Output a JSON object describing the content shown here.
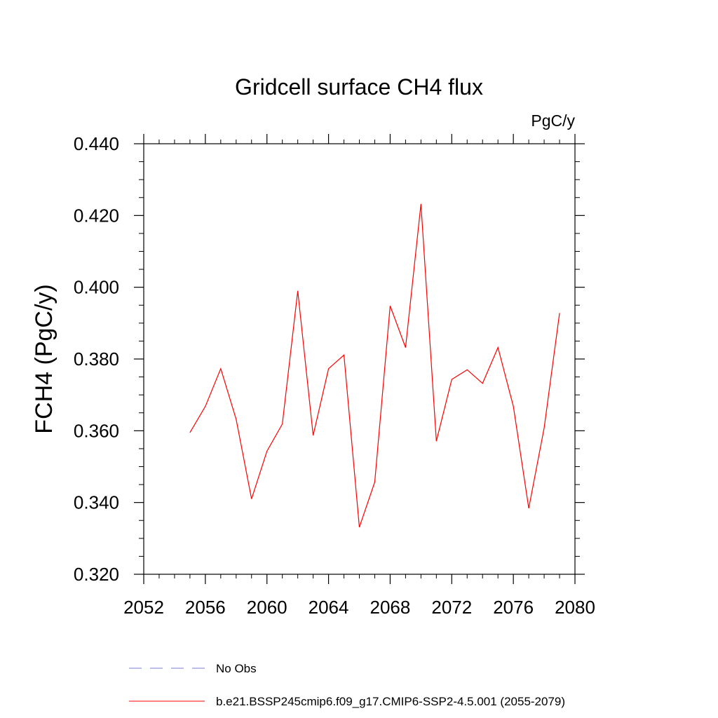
{
  "chart_data": {
    "type": "line",
    "title": "Gridcell surface CH4 flux",
    "units": "PgC/y",
    "ylabel": "FCH4  (PgC/y)",
    "xlabel": "",
    "xlim": [
      2052,
      2080
    ],
    "ylim": [
      0.32,
      0.44
    ],
    "x_ticks": [
      2052,
      2056,
      2060,
      2064,
      2068,
      2072,
      2076,
      2080
    ],
    "y_ticks": [
      "0.320",
      "0.340",
      "0.360",
      "0.380",
      "0.400",
      "0.420",
      "0.440"
    ],
    "grid": false,
    "legend_position": "bottom",
    "series": [
      {
        "name": "No Obs",
        "color": "#7b7bd6",
        "style": "dashed",
        "x": [],
        "y": []
      },
      {
        "name": "b.e21.BSSP245cmip6.f09_g17.CMIP6-SSP2-4.5.001 (2055-2079)",
        "color": "#ff0000",
        "style": "solid",
        "x": [
          2055,
          2056,
          2057,
          2058,
          2059,
          2060,
          2061,
          2062,
          2063,
          2064,
          2065,
          2066,
          2067,
          2068,
          2069,
          2070,
          2071,
          2072,
          2073,
          2074,
          2075,
          2076,
          2077,
          2078,
          2079
        ],
        "y": [
          0.3595,
          0.3668,
          0.3773,
          0.3632,
          0.341,
          0.3543,
          0.3619,
          0.399,
          0.3587,
          0.3773,
          0.3811,
          0.3331,
          0.3457,
          0.3948,
          0.3832,
          0.4232,
          0.3571,
          0.3743,
          0.377,
          0.3732,
          0.3832,
          0.3668,
          0.3384,
          0.3608,
          0.3928
        ]
      }
    ]
  }
}
